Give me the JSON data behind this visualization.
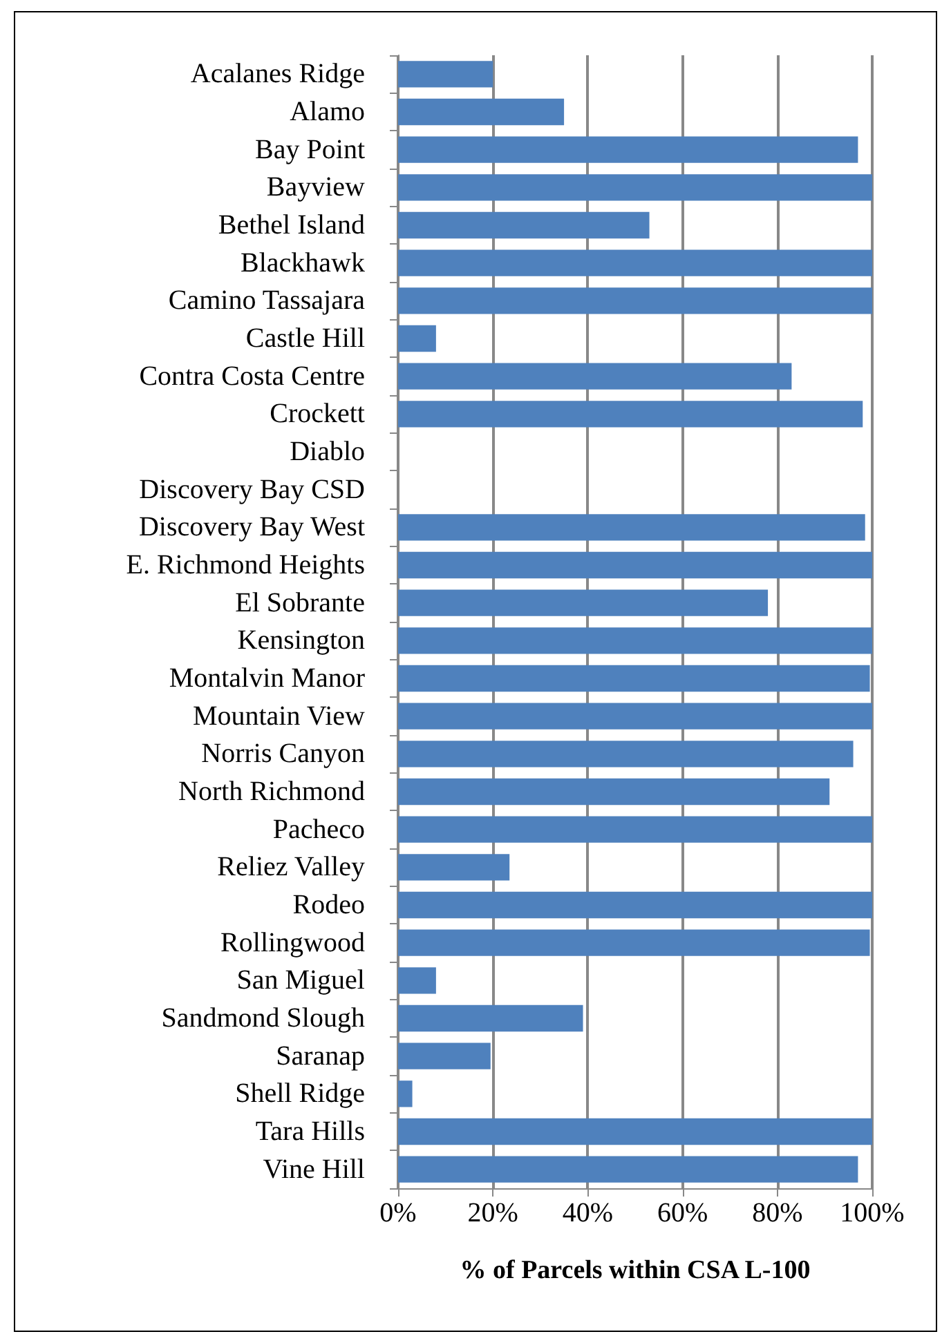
{
  "chart_data": {
    "type": "bar",
    "orientation": "horizontal",
    "xlabel": "% of Parcels within CSA L-100",
    "categories": [
      "Acalanes Ridge",
      "Alamo",
      "Bay Point",
      "Bayview",
      "Bethel Island",
      "Blackhawk",
      "Camino Tassajara",
      "Castle Hill",
      "Contra Costa Centre",
      "Crockett",
      "Diablo",
      "Discovery Bay CSD",
      "Discovery Bay West",
      "E. Richmond Heights",
      "El Sobrante",
      "Kensington",
      "Montalvin Manor",
      "Mountain View",
      "Norris Canyon",
      "North Richmond",
      "Pacheco",
      "Reliez Valley",
      "Rodeo",
      "Rollingwood",
      "San Miguel",
      "Sandmond Slough",
      "Saranap",
      "Shell Ridge",
      "Tara Hills",
      "Vine Hill"
    ],
    "values": [
      20,
      35,
      97,
      100,
      53,
      100,
      100,
      8,
      83,
      98,
      0,
      0,
      98.5,
      100,
      78,
      100,
      99.5,
      100,
      96,
      91,
      100,
      23.5,
      100,
      99.5,
      8,
      39,
      19.5,
      3,
      100,
      97
    ],
    "color": "#4f81bd",
    "xlim": [
      0,
      100
    ],
    "xticks": [
      {
        "value": 0,
        "label": "0%"
      },
      {
        "value": 20,
        "label": "20%"
      },
      {
        "value": 40,
        "label": "40%"
      },
      {
        "value": 60,
        "label": "60%"
      },
      {
        "value": 80,
        "label": "80%"
      },
      {
        "value": 100,
        "label": "100%"
      }
    ],
    "grid": "x"
  }
}
